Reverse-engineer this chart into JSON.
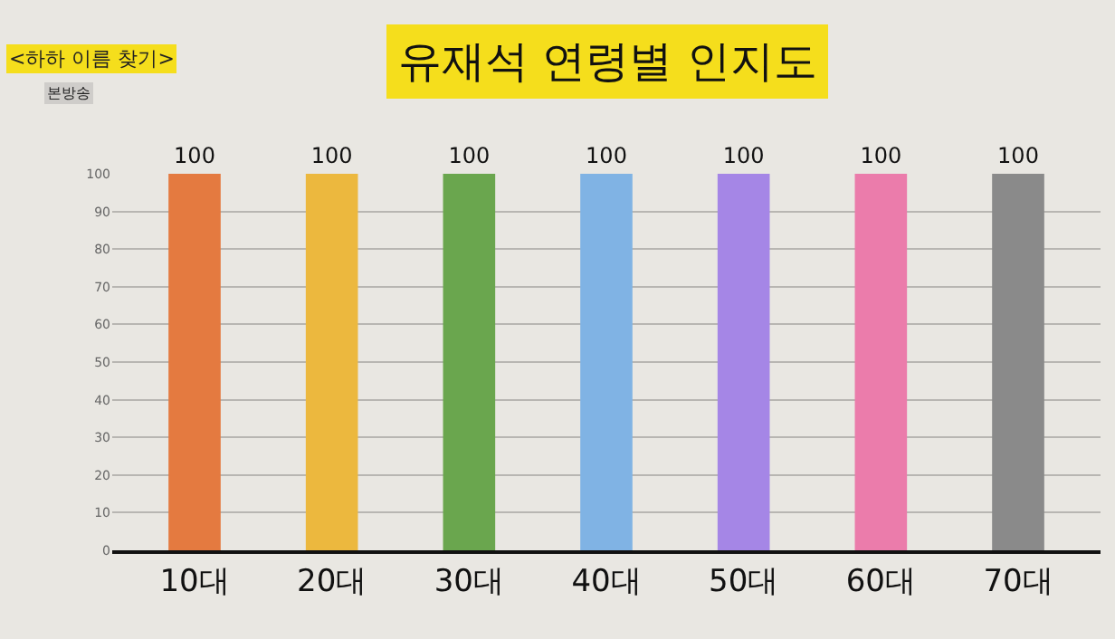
{
  "chart_data": {
    "type": "bar",
    "title": "유재석 연령별 인지도",
    "annotations": [
      "<하하 이름 찾기>",
      "본방송"
    ],
    "categories": [
      "10대",
      "20대",
      "30대",
      "40대",
      "50대",
      "60대",
      "70대"
    ],
    "values": [
      100,
      100,
      100,
      100,
      100,
      100,
      100
    ],
    "colors": [
      "#e47a40",
      "#ecb83e",
      "#6aa64e",
      "#80b3e4",
      "#a586e6",
      "#eb7cab",
      "#8a8a8a"
    ],
    "ylim": [
      0,
      100
    ],
    "yticks": [
      0,
      10,
      20,
      30,
      40,
      50,
      60,
      70,
      80,
      90,
      100
    ],
    "grid": "y",
    "data_labels": true
  }
}
